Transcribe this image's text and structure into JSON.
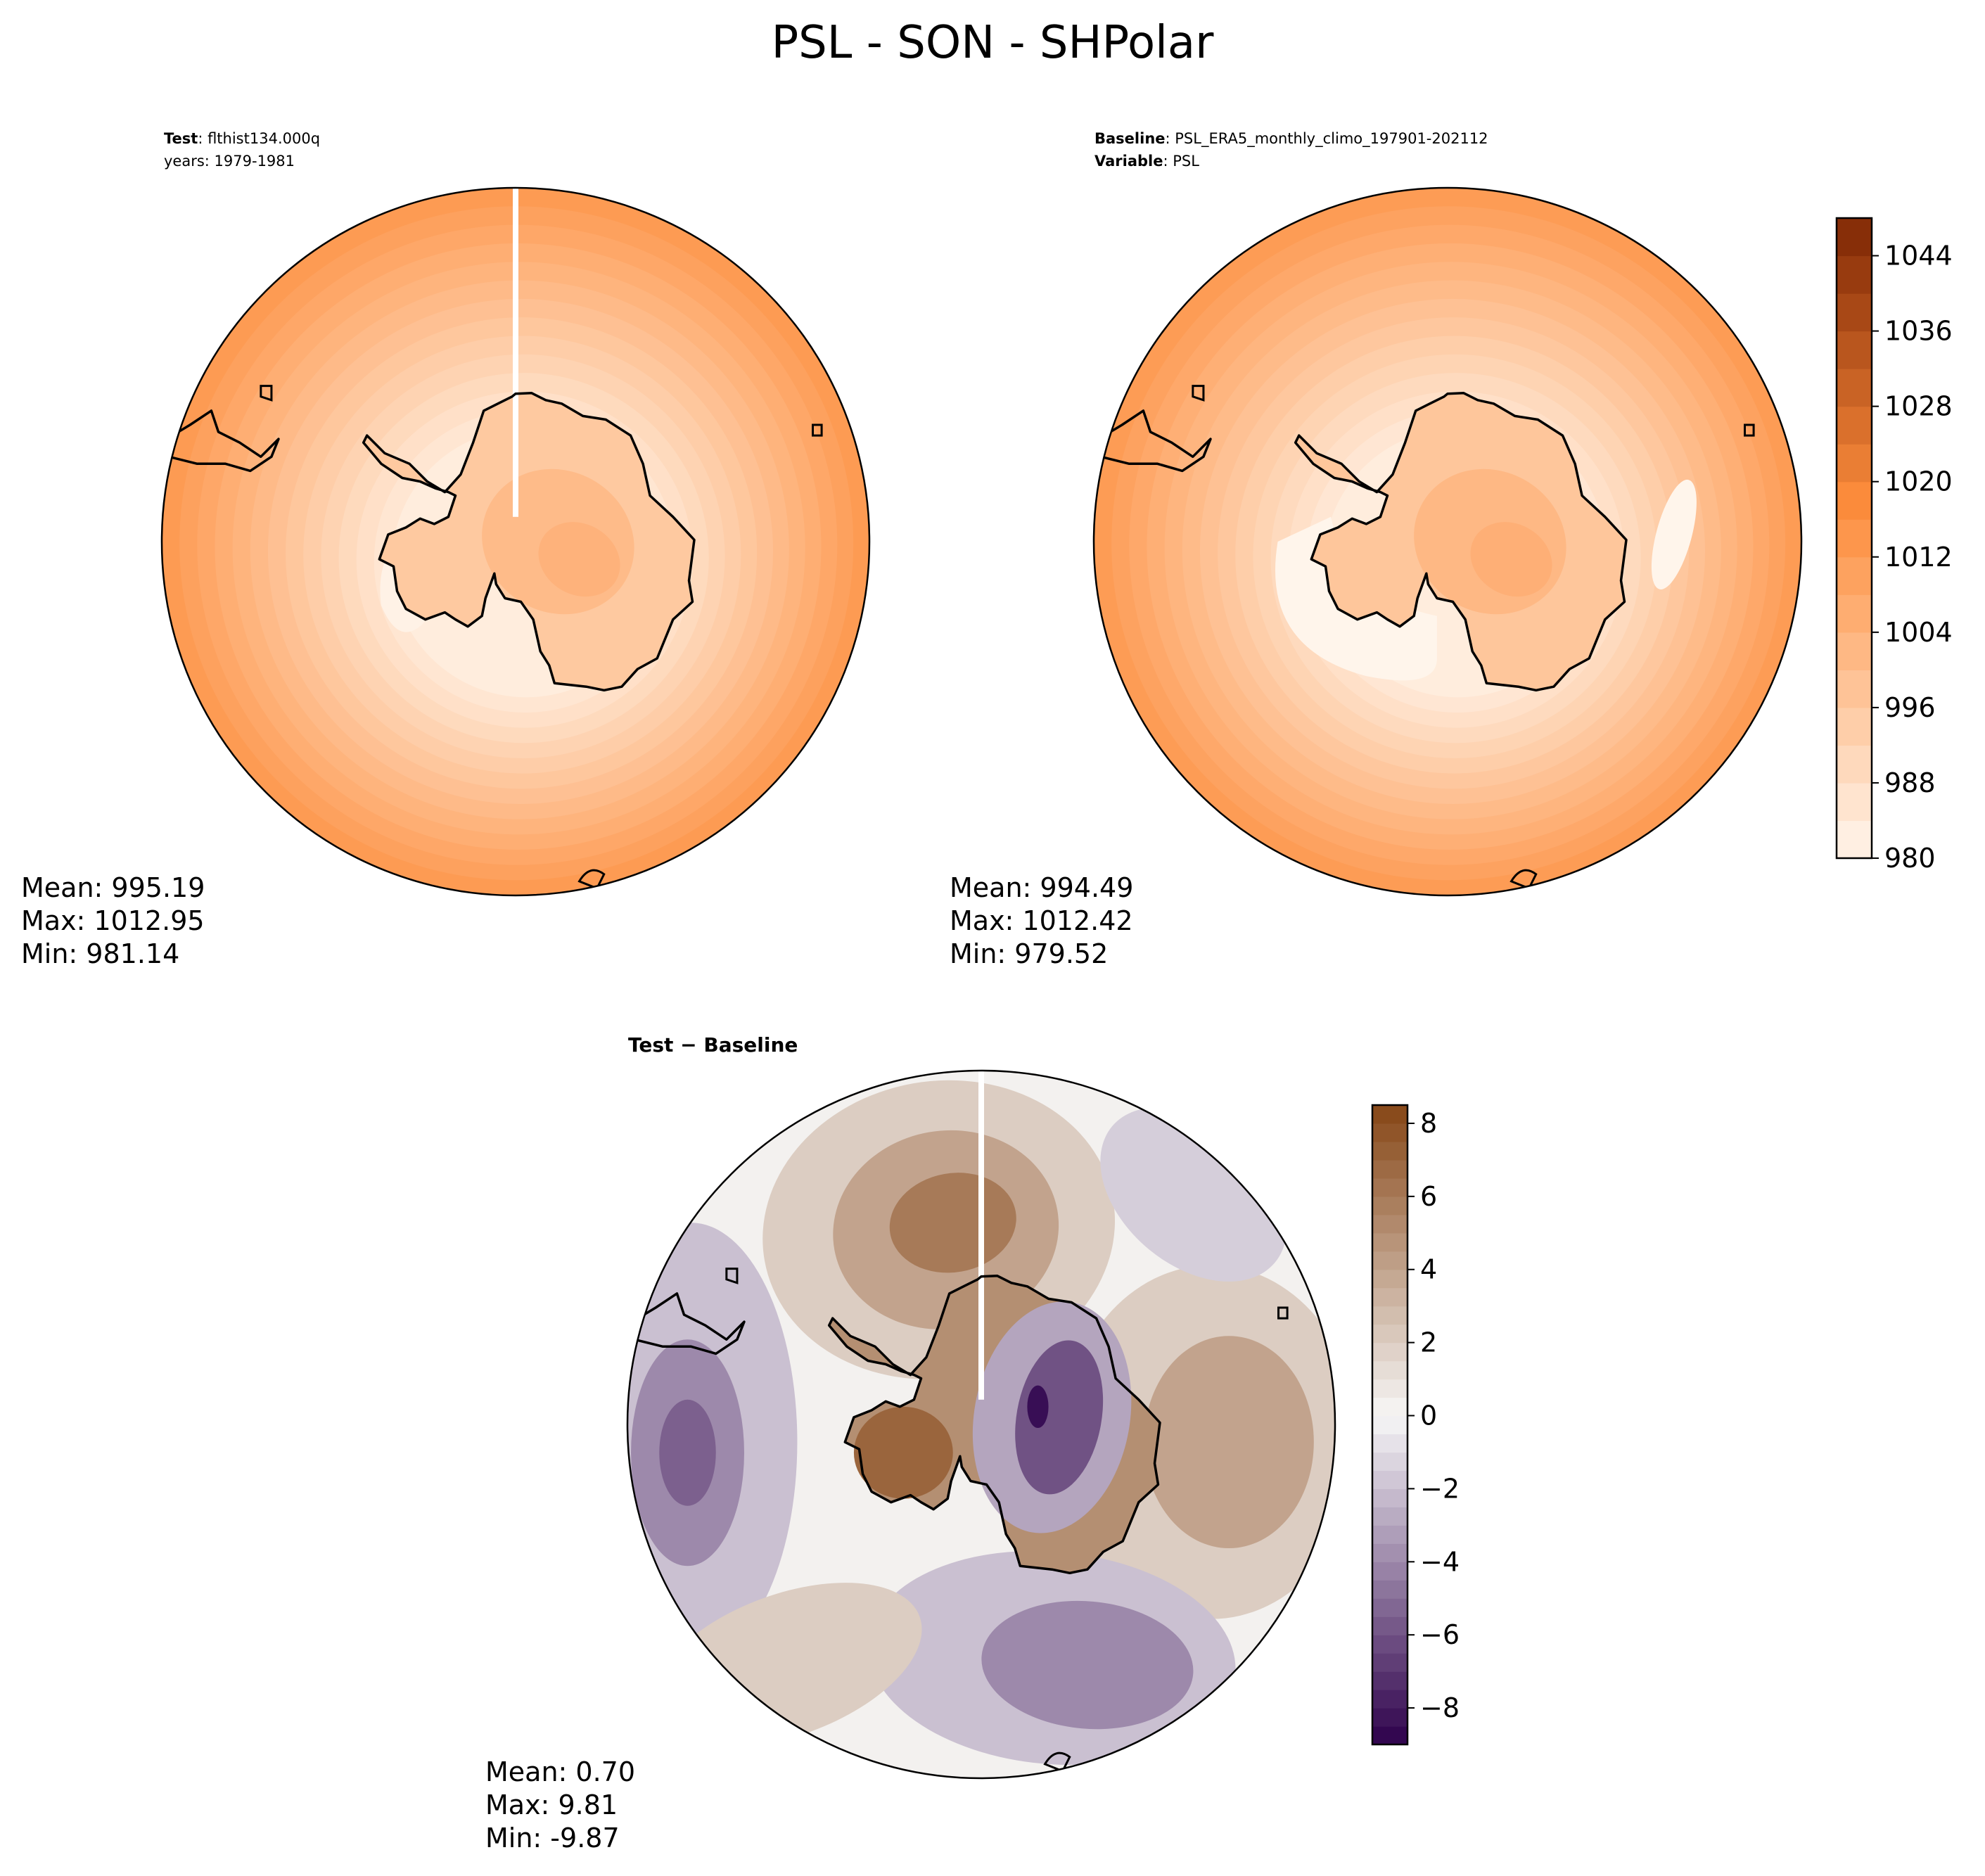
{
  "figure_title": "PSL - SON - SHPolar",
  "colors": {
    "seq_low": "#fff5eb",
    "seq_mid": "#fd8d3c",
    "seq_high": "#7f2704",
    "div_neg": "#2d004b",
    "div_zero": "#f7f7f7",
    "div_pos": "#7f3b08",
    "coast": "#000000",
    "border": "#000000"
  },
  "chart_data": [
    {
      "type": "heatmap",
      "projection": "south-polar-stereographic",
      "panel": "test",
      "header": [
        {
          "bold": "Test",
          "text": ": flthist134.000q"
        },
        {
          "bold": "",
          "text": "years: 1979-1981"
        }
      ],
      "stats": {
        "mean": "Mean: 995.19",
        "max": "Max: 1012.95",
        "min": "Min: 981.14"
      },
      "field": {
        "rim_value": 1012.5,
        "continent_value": 1000,
        "low_value": 981.14,
        "high_value": 1012.95
      }
    },
    {
      "type": "heatmap",
      "projection": "south-polar-stereographic",
      "panel": "baseline",
      "header": [
        {
          "bold": "Baseline",
          "text": ": PSL_ERA5_monthly_climo_197901-202112"
        },
        {
          "bold": "Variable",
          "text": ": PSL"
        }
      ],
      "stats": {
        "mean": "Mean: 994.49",
        "max": "Max: 1012.42",
        "min": "Min: 979.52"
      },
      "field": {
        "rim_value": 1012.0,
        "continent_value": 1001,
        "low_value": 979.52,
        "high_value": 1012.42
      }
    },
    {
      "type": "heatmap",
      "projection": "south-polar-stereographic",
      "panel": "difference",
      "header": [
        {
          "bold": "Test − Baseline",
          "text": ""
        }
      ],
      "stats": {
        "mean": "Mean:  0.70",
        "max": "Max:  9.81",
        "min": "Min: -9.87"
      },
      "anomalies": [
        {
          "name": "upper-positive",
          "value": 6.0
        },
        {
          "name": "west-negative",
          "value": -5.0
        },
        {
          "name": "east-positive",
          "value": 4.0
        },
        {
          "name": "south-negative",
          "value": -4.5
        },
        {
          "name": "continent-west-positive",
          "value": 6.5
        },
        {
          "name": "continent-east-negative",
          "value": -6.0
        }
      ]
    }
  ],
  "colorbars": [
    {
      "name": "psl-colorbar",
      "range": [
        980,
        1048
      ],
      "levels_step": 4,
      "ticks": [
        980,
        988,
        996,
        1004,
        1012,
        1020,
        1028,
        1036,
        1044
      ],
      "tick_labels": [
        "980",
        "988",
        "996",
        "1004",
        "1012",
        "1020",
        "1028",
        "1036",
        "1044"
      ]
    },
    {
      "name": "diff-colorbar",
      "range": [
        -9,
        8.5
      ],
      "levels_step": 0.5,
      "ticks": [
        -8,
        -6,
        -4,
        -2,
        0,
        2,
        4,
        6,
        8
      ],
      "tick_labels": [
        "−8",
        "−6",
        "−4",
        "−2",
        "0",
        "2",
        "4",
        "6",
        "8"
      ]
    }
  ]
}
